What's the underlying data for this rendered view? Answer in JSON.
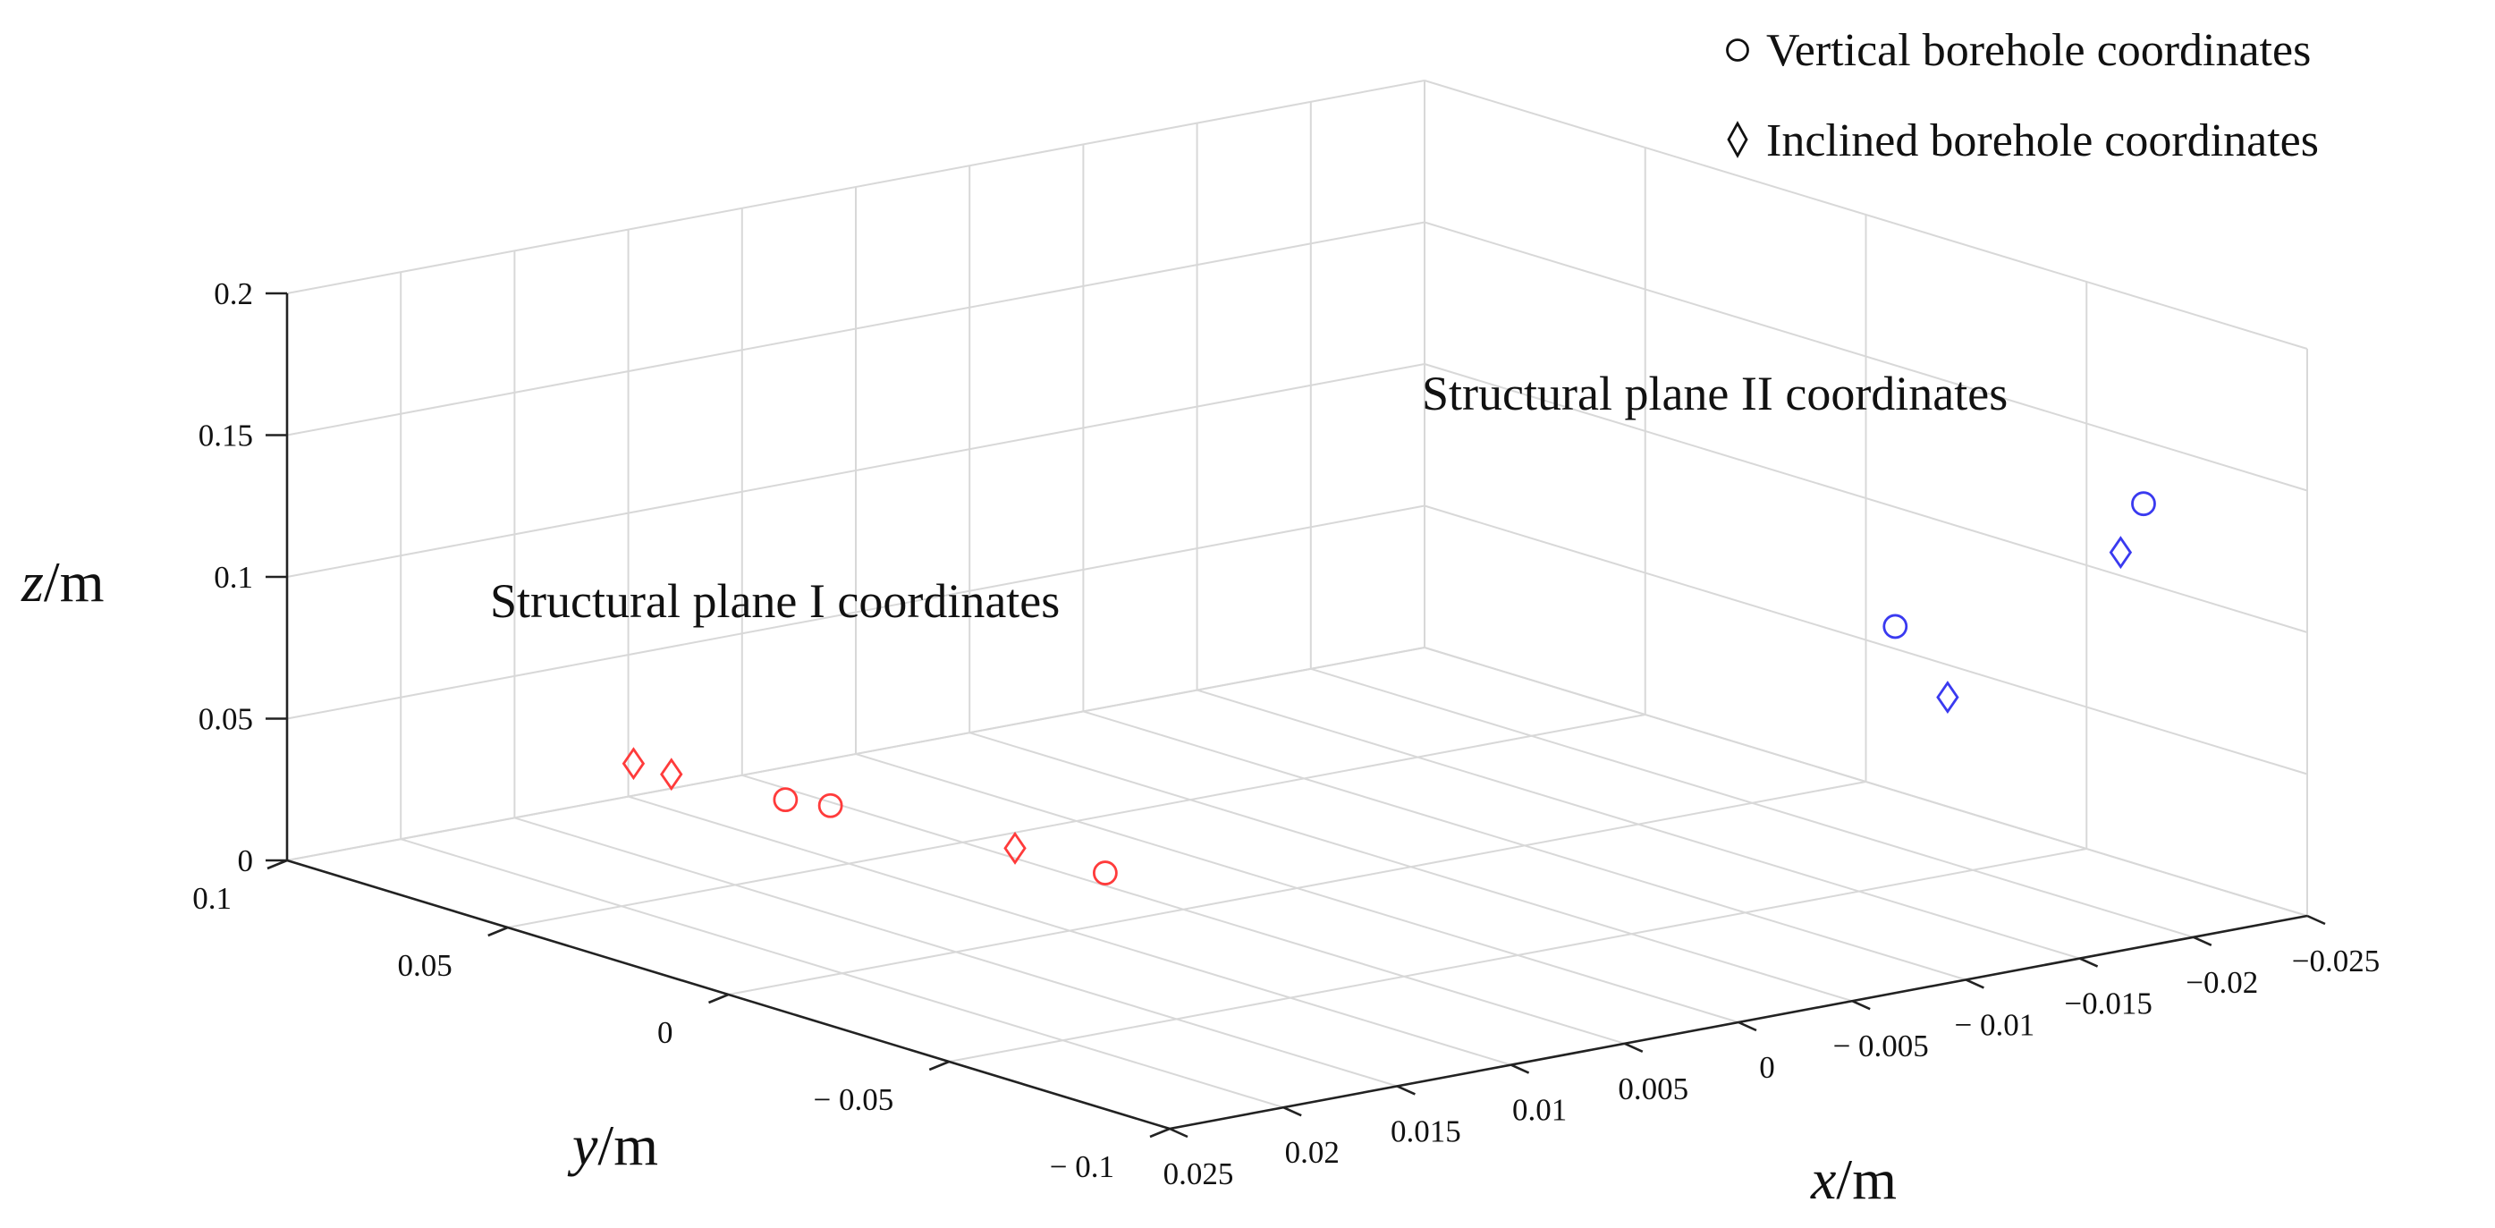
{
  "chart_data": {
    "type": "scatter3d",
    "xlabel": {
      "italic": "x",
      "unit": "/m"
    },
    "ylabel": {
      "italic": "y",
      "unit": "/m"
    },
    "zlabel": {
      "italic": "z",
      "unit": "/m"
    },
    "xlim": [
      -0.025,
      0.025
    ],
    "ylim": [
      -0.1,
      0.1
    ],
    "zlim": [
      0,
      0.2
    ],
    "x_ticks": [
      {
        "v": 0.025,
        "label": "0.025"
      },
      {
        "v": 0.02,
        "label": "0.02"
      },
      {
        "v": 0.015,
        "label": "0.015"
      },
      {
        "v": 0.01,
        "label": "0.01"
      },
      {
        "v": 0.005,
        "label": "0.005"
      },
      {
        "v": 0,
        "label": "0"
      },
      {
        "v": -0.005,
        "label": "− 0.005"
      },
      {
        "v": -0.01,
        "label": "− 0.01"
      },
      {
        "v": -0.015,
        "label": "−0.015"
      },
      {
        "v": -0.02,
        "label": "−0.02"
      },
      {
        "v": -0.025,
        "label": "−0.025"
      }
    ],
    "y_ticks": [
      {
        "v": 0.1,
        "label": "0.1"
      },
      {
        "v": 0.05,
        "label": "0.05"
      },
      {
        "v": 0,
        "label": "0"
      },
      {
        "v": -0.05,
        "label": "− 0.05"
      },
      {
        "v": -0.1,
        "label": "− 0.1"
      }
    ],
    "z_ticks": [
      {
        "v": 0,
        "label": "0"
      },
      {
        "v": 0.05,
        "label": "0.05"
      },
      {
        "v": 0.1,
        "label": "0.1"
      },
      {
        "v": 0.15,
        "label": "0.15"
      },
      {
        "v": 0.2,
        "label": "0.2"
      }
    ],
    "grid": true,
    "legend_position": "top-right",
    "legend": [
      {
        "marker": "circle",
        "label": "Vertical borehole coordinates"
      },
      {
        "marker": "diamond",
        "label": "Inclined borehole coordinates"
      }
    ],
    "annotations": [
      {
        "text": "Structural plane I coordinates",
        "series": "plane-1"
      },
      {
        "text": "Structural plane II coordinates",
        "series": "plane-2"
      }
    ],
    "series": [
      {
        "name": "Structural plane I",
        "color": "#ff3b3b",
        "points": [
          {
            "marker": "diamond",
            "x": 0.0185,
            "y": 0.055,
            "z": 0.0457
          },
          {
            "marker": "diamond",
            "x": 0.018,
            "y": 0.049,
            "z": 0.044
          },
          {
            "marker": "circle",
            "x": 0.0157,
            "y": 0.035,
            "z": 0.0382
          },
          {
            "marker": "circle",
            "x": 0.0145,
            "y": 0.031,
            "z": 0.0362
          },
          {
            "marker": "diamond",
            "x": 0.0124,
            "y": 0.0,
            "z": 0.0327
          },
          {
            "marker": "circle",
            "x": 0.0096,
            "y": -0.006,
            "z": 0.0226
          }
        ]
      },
      {
        "name": "Structural plane II",
        "color": "#3a3af0",
        "points": [
          {
            "marker": "diamond",
            "x": -0.009,
            "y": -0.101,
            "z": 0.1016
          },
          {
            "marker": "circle",
            "x": -0.0098,
            "y": -0.085,
            "z": 0.1178
          },
          {
            "marker": "diamond",
            "x": -0.0168,
            "y": -0.1,
            "z": 0.1405
          },
          {
            "marker": "circle",
            "x": -0.018,
            "y": -0.099,
            "z": 0.1554
          }
        ]
      }
    ]
  }
}
